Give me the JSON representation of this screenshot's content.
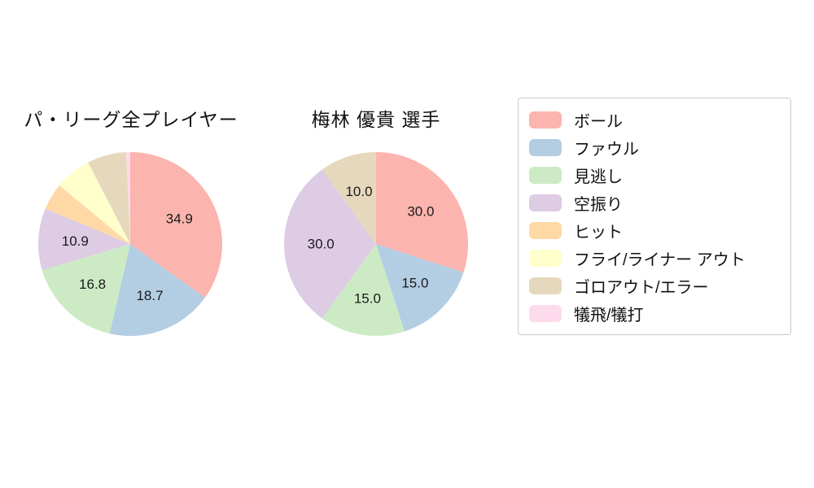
{
  "figure": {
    "background": "#ffffff",
    "start_angle": 90,
    "direction": "clockwise"
  },
  "chart_data": [
    {
      "type": "pie",
      "title": "パ・リーグ全プレイヤー",
      "labels": [
        "ボール",
        "ファウル",
        "見逃し",
        "空振り",
        "ヒット",
        "フライ/ライナー アウト",
        "ゴロアウト/エラー",
        "犠飛/犠打"
      ],
      "values": [
        34.9,
        18.7,
        16.8,
        10.9,
        4.7,
        6.4,
        6.9,
        0.7
      ],
      "pct_labels": [
        "34.9",
        "18.7",
        "16.8",
        "10.9",
        "",
        "",
        "",
        ""
      ],
      "colors": [
        "#fbb4ae",
        "#b3cde3",
        "#ccebc5",
        "#decbe4",
        "#fed9a6",
        "#ffffcc",
        "#e5d8bd",
        "#fddaec"
      ],
      "start_angle": 90,
      "direction": "clockwise",
      "legend_position": "outside-right"
    },
    {
      "type": "pie",
      "title": "梅林 優貴 選手",
      "labels": [
        "ボール",
        "ファウル",
        "見逃し",
        "空振り",
        "ゴロアウト/エラー"
      ],
      "values": [
        30.0,
        15.0,
        15.0,
        30.0,
        10.0
      ],
      "pct_labels": [
        "30.0",
        "15.0",
        "15.0",
        "30.0",
        "10.0"
      ],
      "colors": [
        "#fbb4ae",
        "#b3cde3",
        "#ccebc5",
        "#decbe4",
        "#e5d8bd"
      ],
      "start_angle": 90,
      "direction": "clockwise",
      "legend_position": "outside-right"
    }
  ],
  "legend": {
    "items": [
      {
        "label": "ボール",
        "color": "#fbb4ae"
      },
      {
        "label": "ファウル",
        "color": "#b3cde3"
      },
      {
        "label": "見逃し",
        "color": "#ccebc5"
      },
      {
        "label": "空振り",
        "color": "#decbe4"
      },
      {
        "label": "ヒット",
        "color": "#fed9a6"
      },
      {
        "label": "フライ/ライナー アウト",
        "color": "#ffffcc"
      },
      {
        "label": "ゴロアウト/エラー",
        "color": "#e5d8bd"
      },
      {
        "label": "犠飛/犠打",
        "color": "#fddaec"
      }
    ]
  }
}
